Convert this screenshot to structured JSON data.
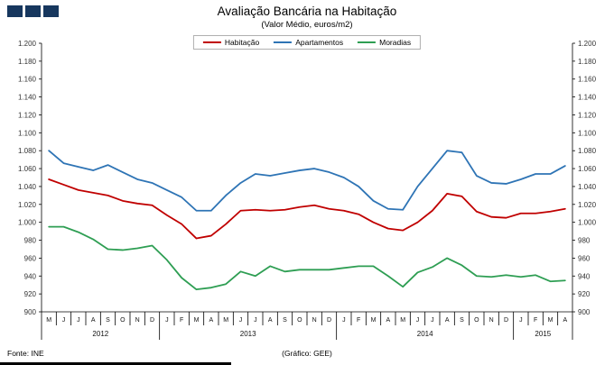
{
  "logo": {
    "color": "#17375e",
    "square_count": 3
  },
  "header": {
    "title": "Avaliação Bancária na Habitação",
    "subtitle": "(Valor Médio, euros/m2)"
  },
  "footer": {
    "source": "Fonte: INE",
    "credit": "(Gráfico: GEE)"
  },
  "chart_data": {
    "type": "line",
    "title": "Avaliação Bancária na Habitação",
    "subtitle": "(Valor Médio, euros/m2)",
    "ylabel": "euros/m2",
    "ylim": [
      900,
      1200
    ],
    "grid": false,
    "legend_position": "top",
    "y_ticks": [
      "1.200",
      "1.180",
      "1.160",
      "1.140",
      "1.120",
      "1.100",
      "1.080",
      "1.060",
      "1.040",
      "1.020",
      "1.000",
      "980",
      "960",
      "940",
      "920",
      "900"
    ],
    "months": [
      "M",
      "J",
      "J",
      "A",
      "S",
      "O",
      "N",
      "D",
      "J",
      "F",
      "M",
      "A",
      "M",
      "J",
      "J",
      "A",
      "S",
      "O",
      "N",
      "D",
      "J",
      "F",
      "M",
      "A",
      "M",
      "J",
      "J",
      "A",
      "S",
      "O",
      "N",
      "D",
      "J",
      "F",
      "M",
      "A"
    ],
    "year_groups": [
      {
        "label": "2012",
        "count": 8
      },
      {
        "label": "2013",
        "count": 12
      },
      {
        "label": "2014",
        "count": 12
      },
      {
        "label": "2015",
        "count": 4
      }
    ],
    "series": [
      {
        "name": "Habitação",
        "color": "#c00000",
        "values": [
          1048,
          1042,
          1036,
          1033,
          1030,
          1024,
          1021,
          1019,
          1008,
          998,
          982,
          985,
          998,
          1013,
          1014,
          1013,
          1014,
          1017,
          1019,
          1015,
          1013,
          1009,
          1000,
          993,
          991,
          1000,
          1013,
          1032,
          1029,
          1012,
          1006,
          1005,
          1010,
          1010,
          1012,
          1015
        ]
      },
      {
        "name": "Apartamentos",
        "color": "#2e74b5",
        "values": [
          1080,
          1066,
          1062,
          1058,
          1064,
          1056,
          1048,
          1044,
          1036,
          1028,
          1013,
          1013,
          1030,
          1044,
          1054,
          1052,
          1055,
          1058,
          1060,
          1056,
          1050,
          1040,
          1024,
          1015,
          1014,
          1040,
          1060,
          1080,
          1078,
          1052,
          1044,
          1043,
          1048,
          1054,
          1054,
          1063
        ]
      },
      {
        "name": "Moradias",
        "color": "#2e9e53",
        "values": [
          995,
          995,
          989,
          981,
          970,
          969,
          971,
          974,
          958,
          938,
          925,
          927,
          931,
          945,
          940,
          951,
          945,
          947,
          947,
          947,
          949,
          951,
          951,
          940,
          928,
          944,
          950,
          960,
          952,
          940,
          939,
          941,
          939,
          941,
          934,
          935
        ]
      }
    ]
  }
}
